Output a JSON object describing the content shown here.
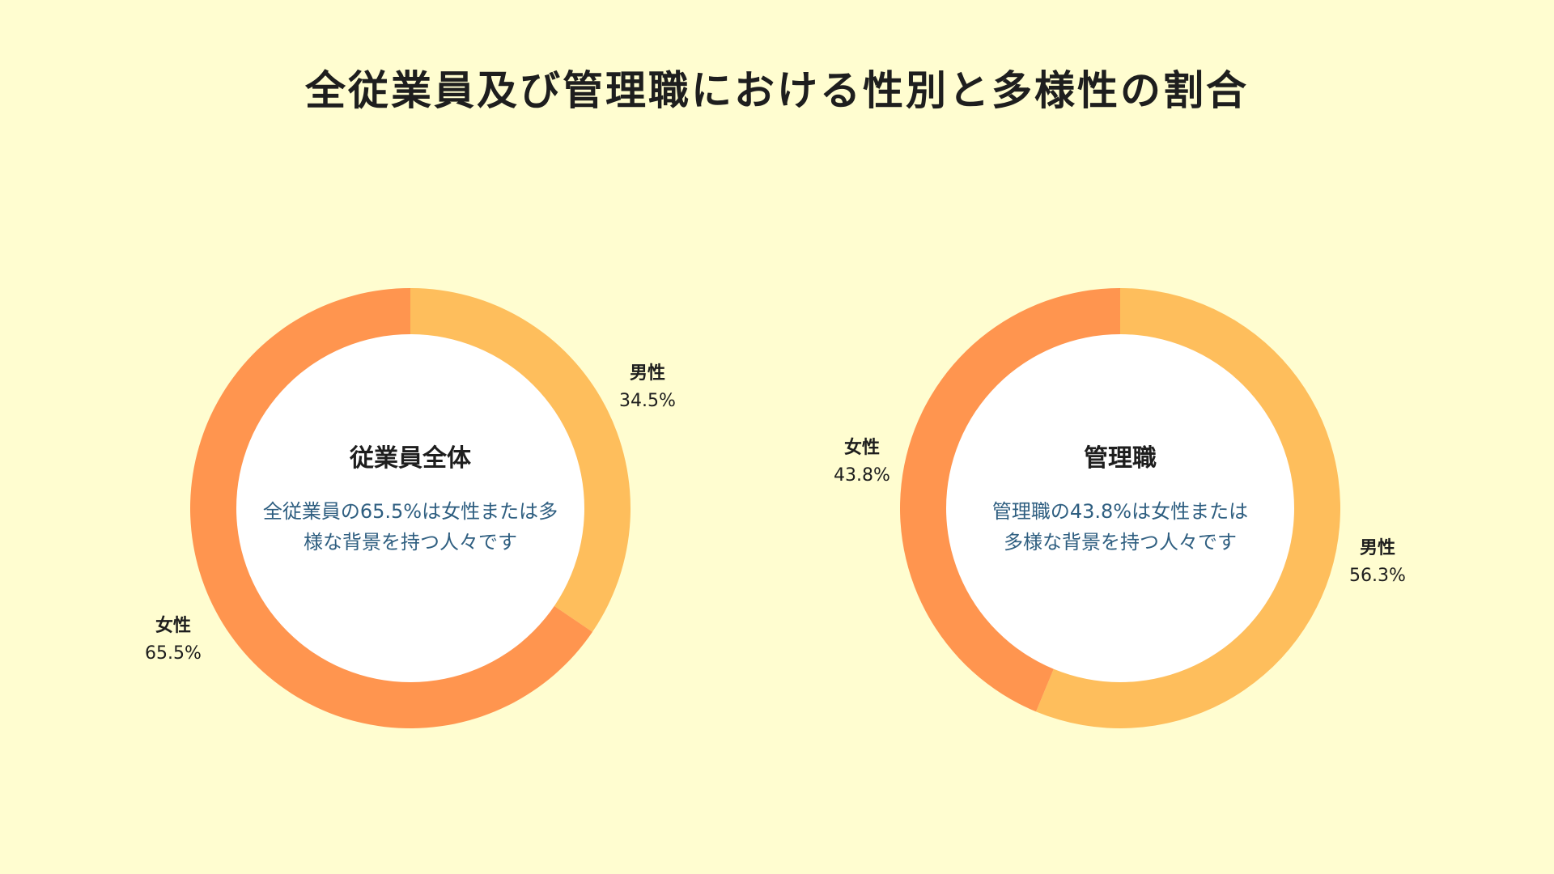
{
  "title": "全従業員及び管理職における性別と多様性の割合",
  "colors": {
    "female": "#FF954F",
    "male": "#FEBE5C",
    "center_fill": "#FFFFFF",
    "background": "#FFFDD0",
    "desc_text": "#2E5E80"
  },
  "chart_data": [
    {
      "type": "pie",
      "variant": "donut",
      "center_title": "従業員全体",
      "center_desc": [
        "全従業員の65.5%は女性または多",
        "様な背景を持つ人々です"
      ],
      "slices": [
        {
          "label": "男性",
          "value": 34.5,
          "value_label": "34.5%",
          "color": "#FEBE5C"
        },
        {
          "label": "女性",
          "value": 65.5,
          "value_label": "65.5%",
          "color": "#FF954F"
        }
      ]
    },
    {
      "type": "pie",
      "variant": "donut",
      "center_title": "管理職",
      "center_desc": [
        "管理職の43.8%は女性または",
        "多様な背景を持つ人々です"
      ],
      "slices": [
        {
          "label": "男性",
          "value": 56.3,
          "value_label": "56.3%",
          "color": "#FEBE5C"
        },
        {
          "label": "女性",
          "value": 43.8,
          "value_label": "43.8%",
          "color": "#FF954F"
        }
      ]
    }
  ]
}
